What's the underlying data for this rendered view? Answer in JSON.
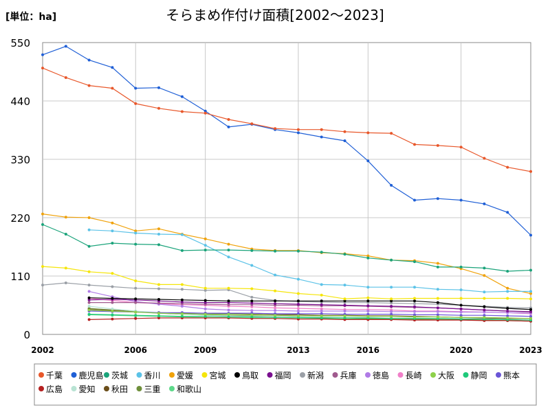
{
  "chart_data": {
    "type": "line",
    "title": "そらまめ作付け面積[2002～2023]",
    "unit_label": "[単位：ha]",
    "xlabel": "",
    "ylabel": "",
    "xlim": [
      2002,
      2023
    ],
    "ylim": [
      0,
      550
    ],
    "x_ticks": [
      2002,
      2006,
      2009,
      2013,
      2016,
      2020,
      2023
    ],
    "y_ticks": [
      0,
      110,
      220,
      330,
      440,
      550
    ],
    "grid": true,
    "legend_position": "bottom",
    "series": [
      {
        "name": "千葉",
        "color": "#e8572a",
        "x": [
          2002,
          2003,
          2004,
          2005,
          2006,
          2007,
          2008,
          2009,
          2010,
          2011,
          2012,
          2013,
          2014,
          2015,
          2016,
          2017,
          2018,
          2019,
          2020,
          2021,
          2022,
          2023
        ],
        "values": [
          502,
          484,
          469,
          464,
          435,
          426,
          420,
          417,
          405,
          397,
          388,
          386,
          386,
          382,
          380,
          379,
          358,
          356,
          353,
          332,
          315,
          307
        ]
      },
      {
        "name": "鹿児島",
        "color": "#1f5fd6",
        "x": [
          2002,
          2003,
          2004,
          2005,
          2006,
          2007,
          2008,
          2009,
          2010,
          2011,
          2012,
          2013,
          2014,
          2015,
          2016,
          2017,
          2018,
          2019,
          2020,
          2021,
          2022,
          2023
        ],
        "values": [
          527,
          543,
          517,
          503,
          464,
          465,
          448,
          421,
          391,
          396,
          386,
          380,
          372,
          365,
          327,
          281,
          253,
          256,
          253,
          246,
          230,
          187
        ]
      },
      {
        "name": "茨城",
        "color": "#1aa37a",
        "x": [
          2002,
          2003,
          2004,
          2005,
          2006,
          2007,
          2008,
          2009,
          2010,
          2011,
          2012,
          2013,
          2014,
          2015,
          2016,
          2017,
          2018,
          2019,
          2020,
          2021,
          2022,
          2023
        ],
        "values": [
          207,
          189,
          166,
          172,
          170,
          169,
          158,
          159,
          159,
          158,
          157,
          157,
          155,
          151,
          144,
          140,
          137,
          127,
          127,
          125,
          119,
          121
        ]
      },
      {
        "name": "香川",
        "color": "#5bc2e7",
        "x": [
          2004,
          2005,
          2006,
          2007,
          2008,
          2009,
          2010,
          2011,
          2012,
          2013,
          2014,
          2015,
          2016,
          2017,
          2018,
          2019,
          2020,
          2021,
          2022,
          2023
        ],
        "values": [
          197,
          195,
          191,
          189,
          188,
          168,
          146,
          130,
          112,
          104,
          94,
          93,
          89,
          89,
          89,
          85,
          84,
          80,
          81,
          81
        ]
      },
      {
        "name": "愛媛",
        "color": "#f0a20a",
        "x": [
          2002,
          2003,
          2004,
          2005,
          2006,
          2007,
          2008,
          2009,
          2010,
          2011,
          2012,
          2013,
          2014,
          2015,
          2016,
          2017,
          2018,
          2019,
          2020,
          2021,
          2022,
          2023
        ],
        "values": [
          227,
          221,
          220,
          210,
          195,
          199,
          189,
          180,
          170,
          161,
          158,
          158,
          154,
          152,
          148,
          140,
          139,
          134,
          124,
          111,
          87,
          77
        ]
      },
      {
        "name": "宮城",
        "color": "#f5e50a",
        "x": [
          2002,
          2003,
          2004,
          2005,
          2006,
          2007,
          2008,
          2009,
          2010,
          2011,
          2012,
          2013,
          2014,
          2015,
          2016,
          2017,
          2018,
          2019,
          2020,
          2021,
          2022,
          2023
        ],
        "values": [
          128,
          125,
          118,
          115,
          101,
          94,
          94,
          87,
          87,
          86,
          82,
          77,
          74,
          67,
          69,
          67,
          68,
          68,
          68,
          68,
          68,
          67
        ]
      },
      {
        "name": "鳥取",
        "color": "#000000",
        "x": [
          2004,
          2005,
          2006,
          2007,
          2008,
          2009,
          2010,
          2011,
          2012,
          2013,
          2014,
          2015,
          2016,
          2017,
          2018,
          2019,
          2020,
          2021,
          2022,
          2023
        ],
        "values": [
          69,
          68,
          67,
          66,
          65,
          64,
          63,
          63,
          63,
          63,
          63,
          63,
          63,
          63,
          63,
          60,
          55,
          52,
          49,
          47
        ]
      },
      {
        "name": "福岡",
        "color": "#7a0f8f",
        "x": [
          2004,
          2005,
          2006,
          2007,
          2008,
          2009,
          2010,
          2011,
          2012,
          2013,
          2014,
          2015,
          2016,
          2017,
          2018,
          2019,
          2020,
          2021,
          2022,
          2023
        ],
        "values": [
          65,
          66,
          65,
          63,
          61,
          60,
          60,
          59,
          58,
          57,
          56,
          55,
          54,
          53,
          52,
          50,
          48,
          46,
          44,
          43
        ]
      },
      {
        "name": "新潟",
        "color": "#9a9fa6",
        "x": [
          2002,
          2003,
          2004,
          2005,
          2006,
          2007,
          2008,
          2009,
          2010,
          2011,
          2012,
          2013,
          2014,
          2015,
          2016,
          2017,
          2018,
          2019,
          2020,
          2021,
          2022,
          2023
        ],
        "values": [
          93,
          97,
          93,
          90,
          87,
          86,
          85,
          83,
          84,
          70,
          64,
          62,
          61,
          60,
          60,
          59,
          58,
          57,
          55,
          53,
          51,
          50
        ]
      },
      {
        "name": "兵庫",
        "color": "#a05a8e",
        "x": [
          2004,
          2005,
          2006,
          2007,
          2008,
          2009,
          2010,
          2011,
          2012,
          2013,
          2014,
          2015,
          2016,
          2017,
          2018,
          2019,
          2020,
          2021,
          2022,
          2023
        ],
        "values": [
          60,
          60,
          60,
          59,
          58,
          57,
          56,
          56,
          55,
          55,
          54,
          54,
          53,
          52,
          51,
          50,
          48,
          46,
          44,
          42
        ]
      },
      {
        "name": "徳島",
        "color": "#b07be6",
        "x": [
          2004,
          2005,
          2006,
          2007,
          2008,
          2009,
          2010,
          2011,
          2012,
          2013,
          2014,
          2015,
          2016,
          2017,
          2018,
          2019,
          2020,
          2021,
          2022,
          2023
        ],
        "values": [
          81,
          71,
          62,
          57,
          53,
          48,
          46,
          45,
          45,
          44,
          44,
          44,
          44,
          43,
          43,
          43,
          42,
          42,
          41,
          40
        ]
      },
      {
        "name": "長崎",
        "color": "#f07fc8",
        "x": [
          2004,
          2005,
          2006,
          2007,
          2008,
          2009,
          2010,
          2011,
          2012,
          2013,
          2014,
          2015,
          2016,
          2017,
          2018,
          2019,
          2020,
          2021,
          2022,
          2023
        ],
        "values": [
          68,
          64,
          60,
          58,
          56,
          55,
          53,
          52,
          50,
          49,
          48,
          47,
          47,
          46,
          44,
          44,
          43,
          42,
          41,
          39
        ]
      },
      {
        "name": "大阪",
        "color": "#8ed14b",
        "x": [
          2004,
          2005,
          2006,
          2007,
          2008,
          2009,
          2010,
          2011,
          2012,
          2013,
          2014,
          2015,
          2016,
          2017,
          2018,
          2019,
          2020,
          2021,
          2022,
          2023
        ],
        "values": [
          46,
          44,
          42,
          40,
          39,
          38,
          38,
          37,
          36,
          35,
          35,
          35,
          34,
          34,
          33,
          33,
          32,
          32,
          31,
          30
        ]
      },
      {
        "name": "静岡",
        "color": "#1fc97a",
        "x": [
          2004,
          2005,
          2006,
          2007,
          2008,
          2009,
          2010,
          2011,
          2012,
          2013,
          2014,
          2015,
          2016,
          2017,
          2018,
          2019,
          2020,
          2021,
          2022,
          2023
        ],
        "values": [
          38,
          37,
          36,
          35,
          34,
          34,
          33,
          33,
          32,
          32,
          31,
          31,
          31,
          30,
          30,
          30,
          29,
          29,
          28,
          27
        ]
      },
      {
        "name": "熊本",
        "color": "#6a55d6",
        "x": [
          2004,
          2005,
          2006,
          2007,
          2008,
          2009,
          2010,
          2011,
          2012,
          2013,
          2014,
          2015,
          2016,
          2017,
          2018,
          2019,
          2020,
          2021,
          2022,
          2023
        ],
        "values": [
          44,
          43,
          42,
          41,
          41,
          40,
          40,
          40,
          39,
          39,
          39,
          38,
          38,
          38,
          37,
          37,
          36,
          36,
          35,
          34
        ]
      },
      {
        "name": "広島",
        "color": "#b52020",
        "x": [
          2004,
          2005,
          2006,
          2007,
          2008,
          2009,
          2010,
          2011,
          2012,
          2013,
          2014,
          2015,
          2016,
          2017,
          2018,
          2019,
          2020,
          2021,
          2022,
          2023
        ],
        "values": [
          28,
          29,
          30,
          31,
          31,
          31,
          31,
          30,
          30,
          29,
          29,
          28,
          28,
          28,
          27,
          27,
          27,
          26,
          26,
          25
        ]
      },
      {
        "name": "愛知",
        "color": "#b8e3d3",
        "x": [
          2004,
          2005,
          2006,
          2007,
          2008,
          2009,
          2010,
          2011,
          2012,
          2013,
          2014,
          2015,
          2016,
          2017,
          2018,
          2019,
          2020,
          2021,
          2022,
          2023
        ],
        "values": [
          53,
          48,
          44,
          41,
          38,
          36,
          35,
          34,
          34,
          33,
          33,
          32,
          32,
          31,
          31,
          30,
          30,
          29,
          28,
          26
        ]
      },
      {
        "name": "秋田",
        "color": "#6b4e1a",
        "x": [
          2004,
          2005,
          2006,
          2007,
          2008,
          2009,
          2010,
          2011,
          2012,
          2013,
          2014,
          2015,
          2016,
          2017,
          2018,
          2019,
          2020,
          2021,
          2022,
          2023
        ],
        "values": [
          47,
          45,
          42,
          41,
          40,
          40,
          39,
          38,
          37,
          37,
          36,
          36,
          35,
          35,
          34,
          33,
          32,
          31,
          30,
          30
        ]
      },
      {
        "name": "三重",
        "color": "#6e8f3a",
        "x": [
          2004,
          2005,
          2006,
          2007,
          2008,
          2009,
          2010,
          2011,
          2012,
          2013,
          2014,
          2015,
          2016,
          2017,
          2018,
          2019,
          2020,
          2021,
          2022,
          2023
        ],
        "values": [
          49,
          46,
          43,
          40,
          38,
          37,
          36,
          35,
          34,
          33,
          32,
          31,
          30,
          30,
          29,
          28,
          28,
          27,
          26,
          25
        ]
      },
      {
        "name": "和歌山",
        "color": "#5dd98a",
        "x": [
          2004,
          2005,
          2006,
          2007,
          2008,
          2009,
          2010,
          2011,
          2012,
          2013,
          2014,
          2015,
          2016,
          2017,
          2018,
          2019,
          2020,
          2021,
          2022,
          2023
        ],
        "values": [
          37,
          36,
          35,
          34,
          33,
          32,
          31,
          31,
          30,
          30,
          30,
          29,
          29,
          29,
          28,
          28,
          28,
          27,
          27,
          26
        ]
      }
    ]
  }
}
